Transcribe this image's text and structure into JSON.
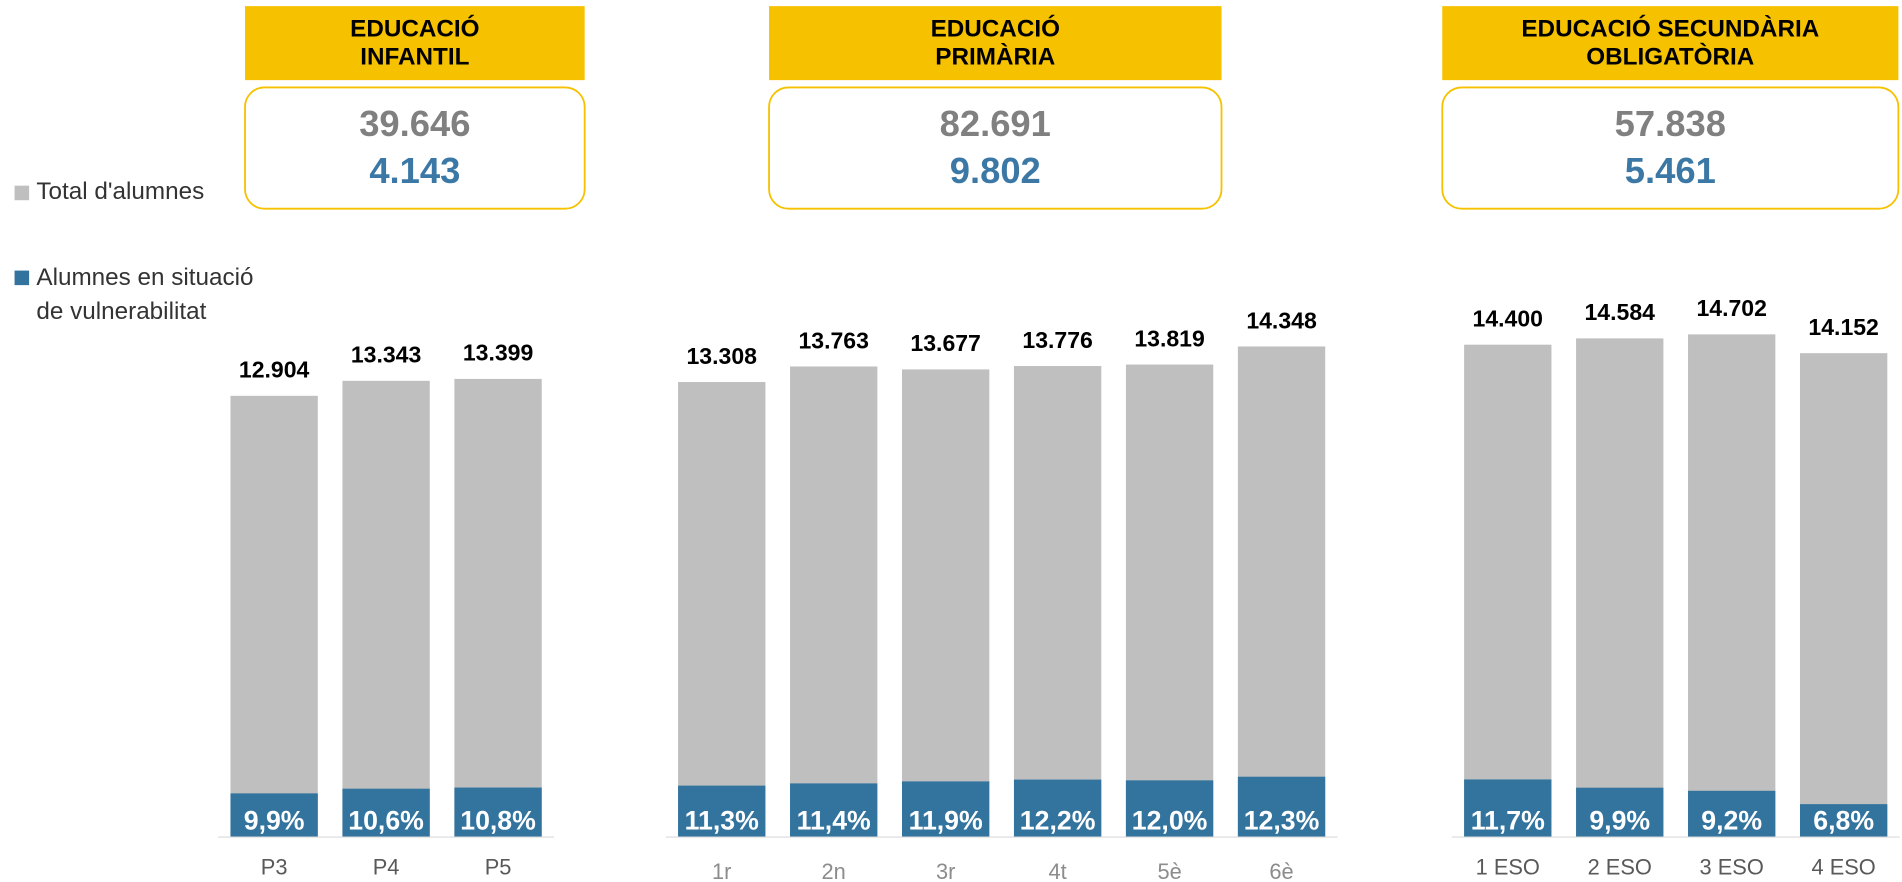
{
  "chart_data": [
    {
      "type": "bar",
      "title": "EDUCACIÓ INFANTIL",
      "total": "39.646",
      "vulnerable": "4.143",
      "categories": [
        "P3",
        "P4",
        "P5"
      ],
      "series": [
        {
          "name": "Total d'alumnes",
          "color": "#bfbfbf",
          "values": [
            12904,
            13343,
            13399
          ],
          "value_labels": [
            "12.904",
            "13.343",
            "13.399"
          ]
        },
        {
          "name": "Alumnes en situació de vulnerabilitat",
          "color": "#33749f",
          "values": [
            9.9,
            10.6,
            10.8
          ],
          "value_labels": [
            "9,9%",
            "10,6%",
            "10,8%"
          ]
        }
      ],
      "ylim": [
        0,
        16000
      ]
    },
    {
      "type": "bar",
      "title": "EDUCACIÓ PRIMÀRIA",
      "total": "82.691",
      "vulnerable": "9.802",
      "categories": [
        "1r",
        "2n",
        "3r",
        "4t",
        "5è",
        "6è"
      ],
      "series": [
        {
          "name": "Total d'alumnes",
          "color": "#bfbfbf",
          "values": [
            13308,
            13763,
            13677,
            13776,
            13819,
            14348
          ],
          "value_labels": [
            "13.308",
            "13.763",
            "13.677",
            "13.776",
            "13.819",
            "14.348"
          ]
        },
        {
          "name": "Alumnes en situació de vulnerabilitat",
          "color": "#33749f",
          "values": [
            11.3,
            11.4,
            11.9,
            12.2,
            12.0,
            12.3
          ],
          "value_labels": [
            "11,3%",
            "11,4%",
            "11,9%",
            "12,2%",
            "12,0%",
            "12,3%"
          ]
        }
      ],
      "ylim": [
        0,
        16000
      ]
    },
    {
      "type": "bar",
      "title": "EDUCACIÓ SECUNDÀRIA OBLIGATÒRIA",
      "total": "57.838",
      "vulnerable": "5.461",
      "categories": [
        "1 ESO",
        "2 ESO",
        "3 ESO",
        "4 ESO"
      ],
      "series": [
        {
          "name": "Total d'alumnes",
          "color": "#bfbfbf",
          "values": [
            14400,
            14584,
            14702,
            14152
          ],
          "value_labels": [
            "14.400",
            "14.584",
            "14.702",
            "14.152"
          ]
        },
        {
          "name": "Alumnes en situació de vulnerabilitat",
          "color": "#33749f",
          "values": [
            11.7,
            9.9,
            9.2,
            6.8
          ],
          "value_labels": [
            "11,7%",
            "9,9%",
            "9,2%",
            "6,8%"
          ]
        }
      ],
      "ylim": [
        0,
        16000
      ]
    }
  ]
}
